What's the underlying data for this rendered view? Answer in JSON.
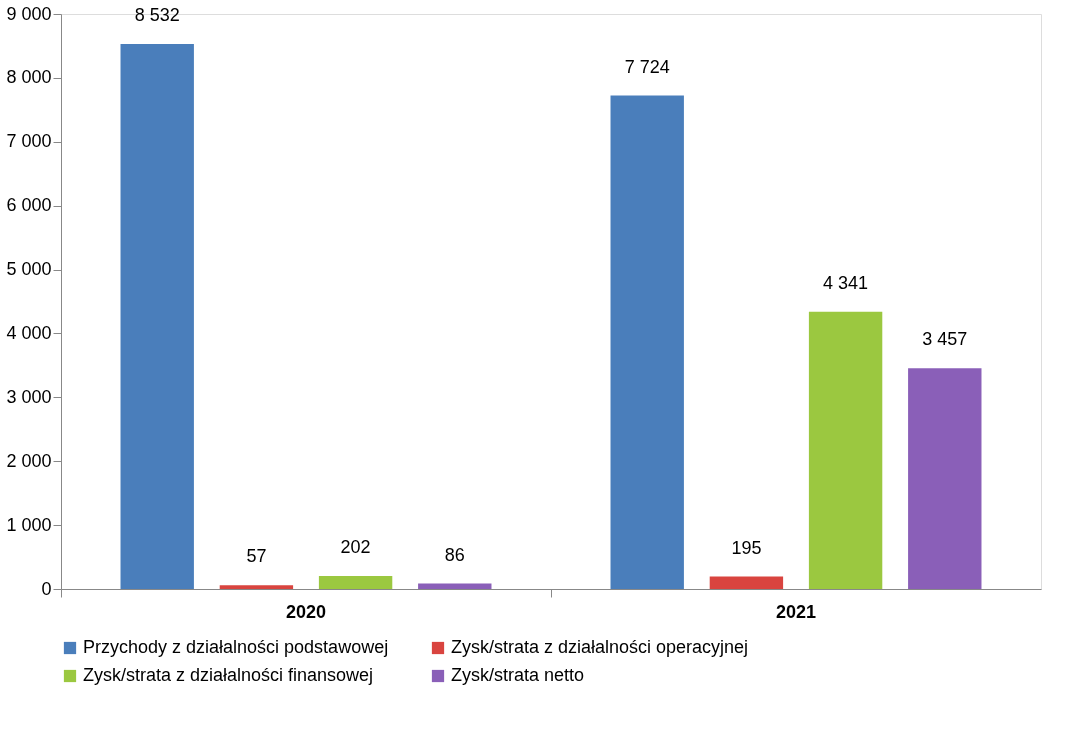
{
  "chart_data": {
    "type": "bar",
    "categories": [
      "2020",
      "2021"
    ],
    "series": [
      {
        "name": "Przychody z działalności podstawowej",
        "color": "#4a7ebb",
        "values": [
          8532,
          7724
        ],
        "value_labels": [
          "8 532",
          "7 724"
        ]
      },
      {
        "name": "Zysk/strata z działalności operacyjnej",
        "color": "#d9443f",
        "values": [
          57,
          195
        ],
        "value_labels": [
          "57",
          "195"
        ]
      },
      {
        "name": "Zysk/strata z działalności finansowej",
        "color": "#9bc840",
        "values": [
          202,
          4341
        ],
        "value_labels": [
          "202",
          "4 341"
        ]
      },
      {
        "name": "Zysk/strata netto",
        "color": "#8a5fb8",
        "values": [
          86,
          3457
        ],
        "value_labels": [
          "86",
          "3 457"
        ]
      }
    ],
    "ylim": [
      0,
      9000
    ],
    "yticks": [
      {
        "value": 0,
        "label": "0"
      },
      {
        "value": 1000,
        "label": "1 000"
      },
      {
        "value": 2000,
        "label": "2 000"
      },
      {
        "value": 3000,
        "label": "3 000"
      },
      {
        "value": 4000,
        "label": "4 000"
      },
      {
        "value": 5000,
        "label": "5 000"
      },
      {
        "value": 6000,
        "label": "6 000"
      },
      {
        "value": 7000,
        "label": "7 000"
      },
      {
        "value": 8000,
        "label": "8 000"
      },
      {
        "value": 9000,
        "label": "9 000"
      }
    ],
    "grid": false,
    "legend": "bottom"
  }
}
